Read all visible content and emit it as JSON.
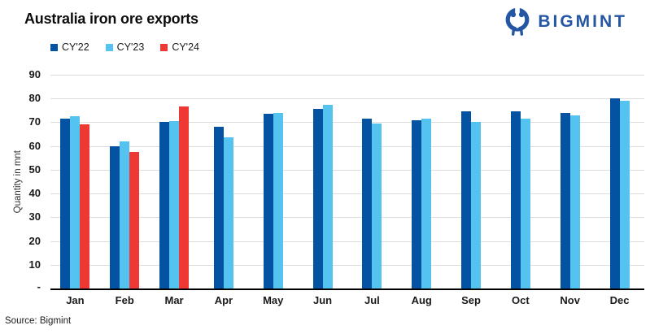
{
  "header": {
    "title": "Australia iron ore exports",
    "logo_text": "BIGMINT",
    "logo_color": "#2456A4"
  },
  "chart_data": {
    "type": "bar",
    "title": "Australia iron ore exports",
    "xlabel": "",
    "ylabel": "Quantity in mnt",
    "ylim": [
      0,
      90
    ],
    "ytick_step": 10,
    "zero_tick_label": "-",
    "grid": true,
    "legend_position": "top-left",
    "gridline_color": "#dcdcdc",
    "categories": [
      "Jan",
      "Feb",
      "Mar",
      "Apr",
      "May",
      "Jun",
      "Jul",
      "Aug",
      "Sep",
      "Oct",
      "Nov",
      "Dec"
    ],
    "series": [
      {
        "name": "CY'22",
        "color": "#0452A2",
        "values": [
          71.5,
          60,
          70,
          68,
          73.5,
          75.5,
          71.5,
          71,
          74.5,
          74.5,
          74,
          80
        ]
      },
      {
        "name": "CY'23",
        "color": "#55C3F0",
        "values": [
          72.5,
          62,
          70.5,
          63.5,
          74,
          77.5,
          69.5,
          71.5,
          70,
          71.5,
          73,
          79
        ]
      },
      {
        "name": "CY'24",
        "color": "#ED3833",
        "values": [
          69,
          57.5,
          76.5,
          null,
          null,
          null,
          null,
          null,
          null,
          null,
          null,
          null
        ]
      }
    ]
  },
  "footer": {
    "source": "Source: Bigmint"
  }
}
